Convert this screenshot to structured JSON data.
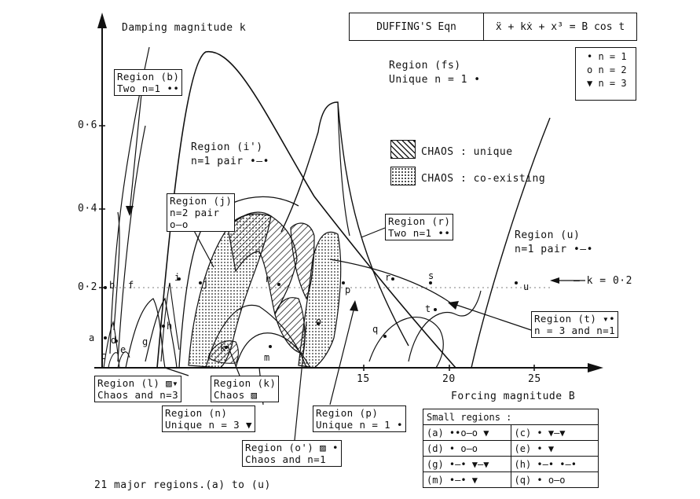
{
  "title_box": {
    "left": "DUFFING'S Eqn",
    "right": "ẍ + kẋ + x³ = B cos t"
  },
  "y_axis_label": "Damping magnitude k",
  "x_axis_label": "Forcing magnitude B",
  "y_ticks": [
    "0·6",
    "0·4",
    "0·2"
  ],
  "x_ticks": [
    "15",
    "20",
    "25"
  ],
  "point_legend": [
    {
      "sym": "•",
      "text": "n = 1"
    },
    {
      "sym": "o",
      "text": "n = 2"
    },
    {
      "sym": "▼",
      "text": "n = 3"
    }
  ],
  "chaos_legend": {
    "unique": "CHAOS : unique",
    "coexist": "CHAOS : co-existing"
  },
  "regions": {
    "b1": "Region (b)",
    "b2": "Two n=1 ••",
    "fs1": "Region (fs)",
    "fs2": "Unique n = 1 •",
    "i1": "Region (i')",
    "i2": "n=1 pair •–•",
    "j1": "Region (j)",
    "j2": "n=2 pair",
    "j3": "o–o",
    "r1": "Region (r)",
    "r2": "Two n=1 ••",
    "u1": "Region (u)",
    "u2": "n=1 pair •–•",
    "k02": "— k = 0·2",
    "t1": "Region (t) ▾•",
    "t2": "n = 3 and n=1",
    "l1": "Region (l) ▨▾",
    "l2": "Chaos and n=3",
    "kk1": "Region (k)",
    "kk2": "Chaos ▨",
    "n1": "Region (n)",
    "n2": "Unique n = 3 ▼",
    "p1": "Region (p)",
    "p2": "Unique n = 1 •",
    "o1": "Region (o') ▨ •",
    "o2": "Chaos and n=1"
  },
  "point_labels": [
    "a",
    "b",
    "c",
    "d",
    "e",
    "f",
    "g",
    "h",
    "i",
    "j",
    "k",
    "m",
    "n",
    "o",
    "p",
    "q",
    "r",
    "s",
    "t",
    "u"
  ],
  "small_regions": {
    "title": "Small regions :",
    "rows": [
      [
        "(a) ••o–o ▼",
        "(c) • ▼–▼"
      ],
      [
        "(d) • o–o",
        "(e) • ▼"
      ],
      [
        "(g) •–• ▼–▼",
        "(h) •–• •–•"
      ],
      [
        "(m) •–• ▼",
        "(q) • o–o"
      ]
    ]
  },
  "footer": "21 major regions.(a) to (u)"
}
